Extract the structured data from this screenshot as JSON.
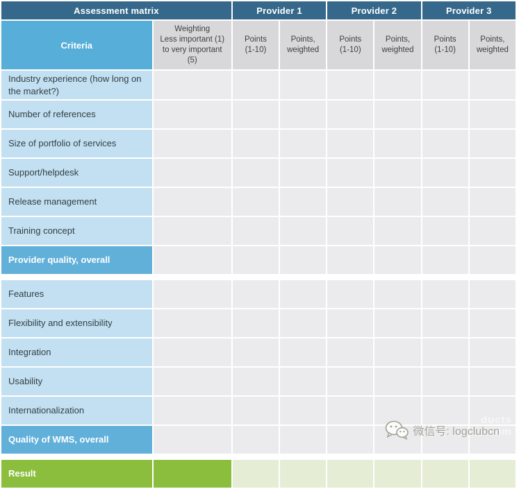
{
  "header": {
    "assessment_matrix": "Assessment matrix",
    "providers": [
      "Provider 1",
      "Provider 2",
      "Provider 3"
    ],
    "criteria_label": "Criteria",
    "weighting_label": "Weighting\nLess important (1) to very important (5)",
    "points_label": "Points\n(1-10)",
    "points_weighted_label": "Points,\nweighted"
  },
  "rows": [
    {
      "label": "Industry experience (how long on the market?)",
      "type": "normal"
    },
    {
      "label": "Number of references",
      "type": "normal"
    },
    {
      "label": "Size of portfolio of services",
      "type": "normal"
    },
    {
      "label": "Support/helpdesk",
      "type": "normal"
    },
    {
      "label": "Release management",
      "type": "normal"
    },
    {
      "label": "Training concept",
      "type": "normal"
    },
    {
      "label": "Provider quality, overall",
      "type": "subtotal"
    },
    {
      "label": "",
      "type": "spacer"
    },
    {
      "label": "Features",
      "type": "normal"
    },
    {
      "label": "Flexibility and extensibility",
      "type": "normal"
    },
    {
      "label": "Integration",
      "type": "normal"
    },
    {
      "label": "Usability",
      "type": "normal"
    },
    {
      "label": "Internationalization",
      "type": "normal"
    },
    {
      "label": "Quality of WMS, overall",
      "type": "subtotal"
    },
    {
      "label": "",
      "type": "spacer"
    },
    {
      "label": "Result",
      "type": "result"
    }
  ],
  "watermark": {
    "wechat_label": "微信号: logclubcn",
    "faint_line1": "ducts",
    "faint_line2": ".com"
  },
  "colors": {
    "header_bar": "#35688a",
    "criteria_blue": "#57aed8",
    "row_blue": "#c2e0f1",
    "highlight_blue": "#61b0da",
    "cell_gray": "#ebebed",
    "header_gray": "#d8d8da",
    "result_green": "#8cbe3e",
    "result_light_green": "#e5eed5"
  }
}
